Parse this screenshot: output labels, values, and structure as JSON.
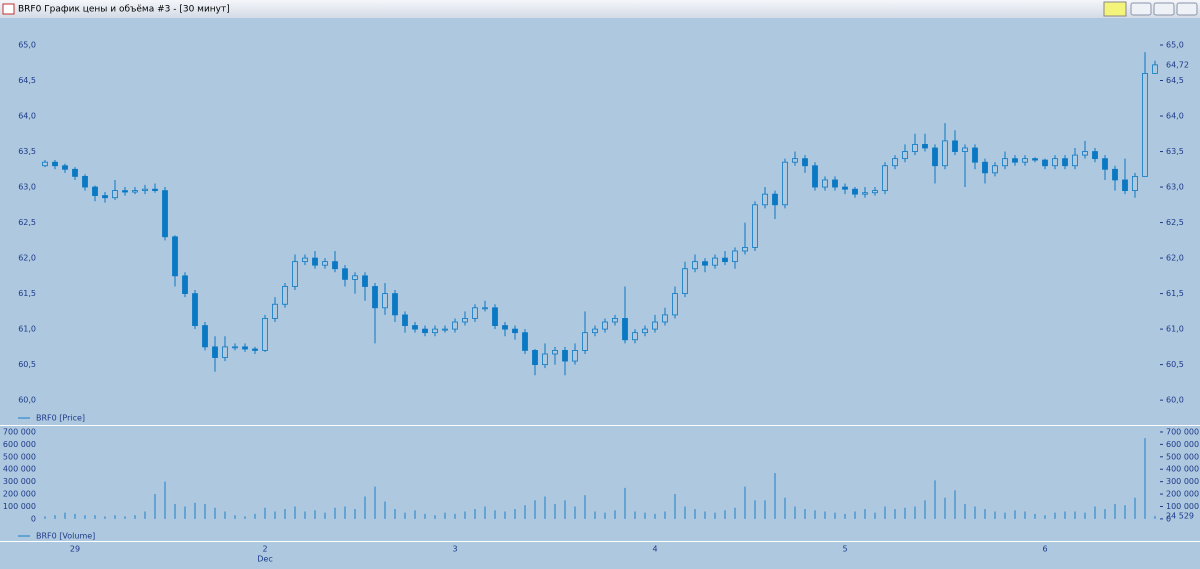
{
  "window": {
    "title": "BRF0 График цены и объёма #3 - [30 минут]"
  },
  "chart_data": [
    {
      "type": "candlestick",
      "legend": "BRF0 [Price]",
      "color": "#0a78c2",
      "ylim": [
        59.65,
        65.38
      ],
      "yticks": [
        {
          "value": 60,
          "label": "60,0"
        },
        {
          "value": 60.5,
          "label": "60,5"
        },
        {
          "value": 61,
          "label": "61,0"
        },
        {
          "value": 61.5,
          "label": "61,5"
        },
        {
          "value": 62,
          "label": "62,0"
        },
        {
          "value": 62.5,
          "label": "62,5"
        },
        {
          "value": 63,
          "label": "63,0"
        },
        {
          "value": 63.5,
          "label": "63,5"
        },
        {
          "value": 64,
          "label": "64,0"
        },
        {
          "value": 64.5,
          "label": "64,5"
        },
        {
          "value": 65,
          "label": "65,0"
        }
      ],
      "open": [
        63.3,
        63.35,
        63.3,
        63.25,
        63.15,
        63.0,
        62.88,
        62.85,
        62.95,
        62.93,
        62.95,
        62.97,
        62.95,
        62.3,
        61.75,
        61.5,
        61.05,
        60.75,
        60.6,
        60.75,
        60.75,
        60.72,
        60.7,
        61.15,
        61.35,
        61.6,
        61.95,
        62.0,
        61.9,
        61.95,
        61.85,
        61.7,
        61.75,
        61.6,
        61.3,
        61.5,
        61.2,
        61.05,
        61.0,
        60.95,
        61.0,
        61.0,
        61.1,
        61.15,
        61.3,
        61.3,
        61.05,
        61.0,
        60.95,
        60.7,
        60.5,
        60.65,
        60.7,
        60.55,
        60.7,
        60.95,
        61.0,
        61.1,
        61.15,
        60.85,
        60.95,
        61.0,
        61.1,
        61.2,
        61.5,
        61.85,
        61.95,
        61.9,
        62.0,
        61.95,
        62.1,
        62.15,
        62.75,
        62.9,
        62.75,
        63.35,
        63.4,
        63.3,
        63.0,
        63.1,
        63.0,
        62.97,
        62.9,
        62.92,
        62.95,
        63.3,
        63.4,
        63.5,
        63.6,
        63.55,
        63.3,
        63.65,
        63.5,
        63.55,
        63.35,
        63.2,
        63.3,
        63.4,
        63.35,
        63.4,
        63.38,
        63.3,
        63.4,
        63.3,
        63.45,
        63.5,
        63.4,
        63.25,
        63.1,
        62.95,
        63.15,
        64.6
      ],
      "high": [
        63.38,
        63.38,
        63.33,
        63.28,
        63.18,
        63.02,
        62.93,
        63.1,
        63.0,
        63.0,
        63.03,
        63.05,
        63.0,
        62.32,
        61.8,
        61.55,
        61.1,
        60.9,
        60.9,
        60.8,
        60.8,
        60.75,
        61.2,
        61.45,
        61.65,
        62.05,
        62.05,
        62.1,
        62.0,
        62.1,
        61.9,
        61.8,
        61.8,
        61.65,
        61.65,
        61.55,
        61.25,
        61.1,
        61.05,
        61.05,
        61.05,
        61.15,
        61.25,
        61.35,
        61.4,
        61.35,
        61.1,
        61.05,
        61.0,
        60.72,
        60.8,
        60.75,
        60.75,
        60.8,
        61.25,
        61.05,
        61.15,
        61.2,
        61.6,
        61.0,
        61.05,
        61.2,
        61.3,
        61.6,
        61.95,
        62.05,
        62.0,
        62.05,
        62.1,
        62.15,
        62.5,
        62.8,
        63.0,
        62.95,
        63.4,
        63.5,
        63.45,
        63.35,
        63.15,
        63.15,
        63.05,
        63.0,
        63.0,
        63.0,
        63.35,
        63.45,
        63.6,
        63.75,
        63.75,
        63.6,
        63.9,
        63.8,
        63.6,
        63.6,
        63.4,
        63.35,
        63.5,
        63.45,
        63.45,
        63.42,
        63.4,
        63.45,
        63.45,
        63.55,
        63.65,
        63.55,
        63.45,
        63.3,
        63.4,
        63.2,
        64.9,
        64.78
      ],
      "low": [
        63.28,
        63.25,
        63.2,
        63.1,
        62.95,
        62.8,
        62.78,
        62.82,
        62.88,
        62.9,
        62.9,
        62.92,
        62.25,
        61.6,
        61.45,
        61.0,
        60.7,
        60.4,
        60.55,
        60.7,
        60.68,
        60.65,
        60.68,
        61.1,
        61.3,
        61.55,
        61.9,
        61.85,
        61.85,
        61.8,
        61.6,
        61.5,
        61.4,
        60.8,
        61.2,
        61.1,
        60.95,
        60.95,
        60.9,
        60.9,
        60.95,
        60.95,
        61.05,
        61.1,
        61.25,
        61.0,
        60.9,
        60.85,
        60.65,
        60.35,
        60.45,
        60.5,
        60.35,
        60.5,
        60.65,
        60.9,
        60.95,
        61.05,
        60.8,
        60.8,
        60.9,
        60.95,
        61.05,
        61.15,
        61.45,
        61.8,
        61.8,
        61.85,
        61.9,
        61.85,
        62.05,
        62.1,
        62.7,
        62.55,
        62.7,
        63.3,
        63.2,
        62.95,
        62.95,
        62.95,
        62.9,
        62.85,
        62.85,
        62.88,
        62.9,
        63.25,
        63.35,
        63.45,
        63.5,
        63.05,
        63.25,
        63.45,
        63.0,
        63.25,
        63.05,
        63.15,
        63.25,
        63.3,
        63.3,
        63.35,
        63.25,
        63.25,
        63.25,
        63.25,
        63.4,
        63.35,
        63.1,
        62.95,
        62.9,
        62.85,
        63.15,
        64.6
      ],
      "close": [
        63.35,
        63.3,
        63.25,
        63.15,
        63.0,
        62.88,
        62.85,
        62.95,
        62.93,
        62.95,
        62.97,
        62.95,
        62.3,
        61.75,
        61.5,
        61.05,
        60.75,
        60.6,
        60.75,
        60.75,
        60.72,
        60.7,
        61.15,
        61.35,
        61.6,
        61.95,
        62.0,
        61.9,
        61.95,
        61.85,
        61.7,
        61.75,
        61.6,
        61.3,
        61.5,
        61.2,
        61.05,
        61.0,
        60.95,
        61.0,
        61.0,
        61.1,
        61.15,
        61.3,
        61.3,
        61.05,
        61.0,
        60.95,
        60.7,
        60.5,
        60.65,
        60.7,
        60.55,
        60.7,
        60.95,
        61.0,
        61.1,
        61.15,
        60.85,
        60.95,
        61.0,
        61.1,
        61.2,
        61.5,
        61.85,
        61.95,
        61.9,
        62.0,
        61.95,
        62.1,
        62.15,
        62.75,
        62.9,
        62.75,
        63.35,
        63.4,
        63.3,
        63.0,
        63.1,
        63.0,
        62.97,
        62.9,
        62.92,
        62.95,
        63.3,
        63.4,
        63.5,
        63.6,
        63.55,
        63.3,
        63.65,
        63.5,
        63.55,
        63.35,
        63.2,
        63.3,
        63.4,
        63.35,
        63.4,
        63.38,
        63.3,
        63.4,
        63.3,
        63.45,
        63.5,
        63.4,
        63.25,
        63.1,
        62.95,
        63.15,
        64.6,
        64.72
      ],
      "last_value_label": "64,72"
    },
    {
      "type": "bar",
      "legend": "BRF0 [Volume]",
      "color": "#1a80c8",
      "ylim": [
        -170000,
        732000
      ],
      "yticks": [
        0,
        {
          "value": 100000,
          "label": "100 000"
        },
        {
          "value": 200000,
          "label": "200 000"
        },
        {
          "value": 300000,
          "label": "300 000"
        },
        {
          "value": 400000,
          "label": "400 000"
        },
        {
          "value": 500000,
          "label": "500 000"
        },
        {
          "value": 600000,
          "label": "600 000"
        },
        {
          "value": 700000,
          "label": "700 000"
        }
      ],
      "categories": [
        null,
        null,
        null,
        "29",
        null,
        null,
        null,
        null,
        null,
        null,
        null,
        null,
        null,
        null,
        null,
        null,
        null,
        null,
        null,
        null,
        null,
        null,
        "2",
        null,
        null,
        null,
        null,
        null,
        null,
        null,
        null,
        null,
        null,
        null,
        null,
        null,
        null,
        null,
        null,
        null,
        null,
        "3",
        null,
        null,
        null,
        null,
        null,
        null,
        null,
        null,
        null,
        null,
        null,
        null,
        null,
        null,
        null,
        null,
        null,
        null,
        null,
        "4",
        null,
        null,
        null,
        null,
        null,
        null,
        null,
        null,
        null,
        null,
        null,
        null,
        null,
        null,
        null,
        null,
        null,
        null,
        "5",
        null,
        null,
        null,
        null,
        null,
        null,
        null,
        null,
        null,
        null,
        null,
        null,
        null,
        null,
        null,
        null,
        null,
        null,
        null,
        "6",
        null,
        null,
        null,
        null,
        null,
        null,
        null,
        null,
        null,
        null,
        null
      ],
      "x_annotation": "Dec",
      "values": [
        20000,
        30000,
        50000,
        40000,
        30000,
        30000,
        20000,
        30000,
        20000,
        30000,
        60000,
        200000,
        300000,
        120000,
        100000,
        130000,
        120000,
        90000,
        60000,
        30000,
        20000,
        40000,
        90000,
        60000,
        80000,
        100000,
        60000,
        70000,
        50000,
        90000,
        100000,
        80000,
        180000,
        260000,
        140000,
        80000,
        50000,
        70000,
        40000,
        30000,
        50000,
        40000,
        60000,
        80000,
        100000,
        70000,
        60000,
        80000,
        110000,
        150000,
        180000,
        120000,
        150000,
        100000,
        190000,
        60000,
        50000,
        70000,
        250000,
        60000,
        50000,
        40000,
        60000,
        200000,
        100000,
        80000,
        60000,
        50000,
        70000,
        90000,
        260000,
        150000,
        150000,
        370000,
        170000,
        100000,
        80000,
        70000,
        60000,
        50000,
        40000,
        60000,
        80000,
        50000,
        100000,
        80000,
        90000,
        100000,
        150000,
        310000,
        170000,
        230000,
        120000,
        100000,
        80000,
        60000,
        50000,
        70000,
        60000,
        40000,
        30000,
        50000,
        60000,
        60000,
        50000,
        100000,
        80000,
        120000,
        110000,
        170000,
        650000,
        24529
      ],
      "last_value_label": "24 529"
    }
  ]
}
